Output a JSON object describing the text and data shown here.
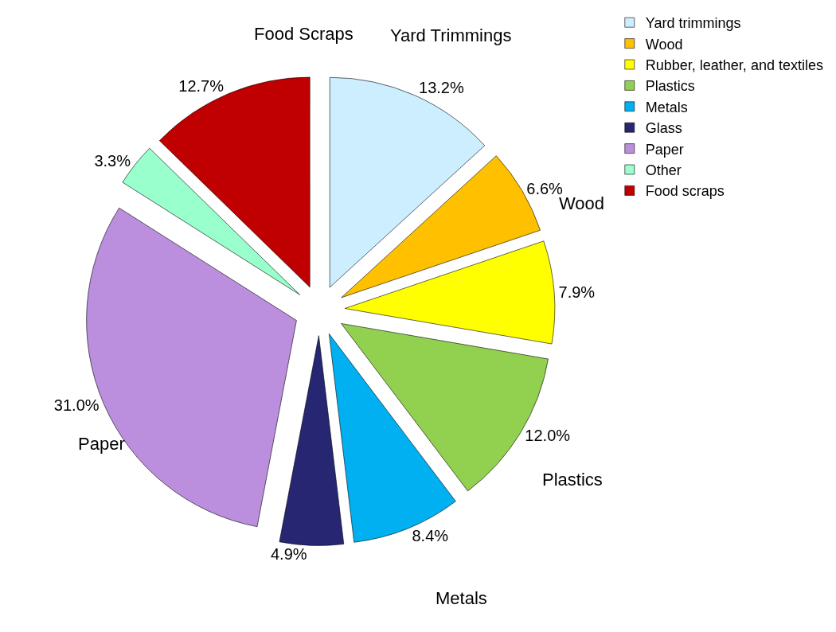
{
  "chart_data": {
    "type": "pie",
    "categories": [
      "Yard trimmings",
      "Wood",
      "Rubber, leather, and textiles",
      "Plastics",
      "Metals",
      "Glass",
      "Paper",
      "Other",
      "Food scraps"
    ],
    "values": [
      13.2,
      6.6,
      7.9,
      12.0,
      8.4,
      4.9,
      31.0,
      3.3,
      12.7
    ],
    "value_labels": [
      "13.2%",
      "6.6%",
      "7.9%",
      "12.0%",
      "8.4%",
      "4.9%",
      "31.0%",
      "3.3%",
      "12.7%"
    ],
    "colors": [
      "#cceeff",
      "#ffc000",
      "#ffff00",
      "#92d050",
      "#00b0f0",
      "#262673",
      "#bb8fdd",
      "#99ffcc",
      "#c00000"
    ],
    "annotations": [
      {
        "text": "Yard Trimmings",
        "x": "Yard trimmings"
      },
      {
        "text": "Wood",
        "x": "Wood"
      },
      {
        "text": "Plastics",
        "x": "Plastics"
      },
      {
        "text": "Metals",
        "x": "Metals"
      },
      {
        "text": "Paper",
        "x": "Paper"
      },
      {
        "text": "Food Scraps",
        "x": "Food scraps"
      }
    ],
    "legend": "right"
  }
}
